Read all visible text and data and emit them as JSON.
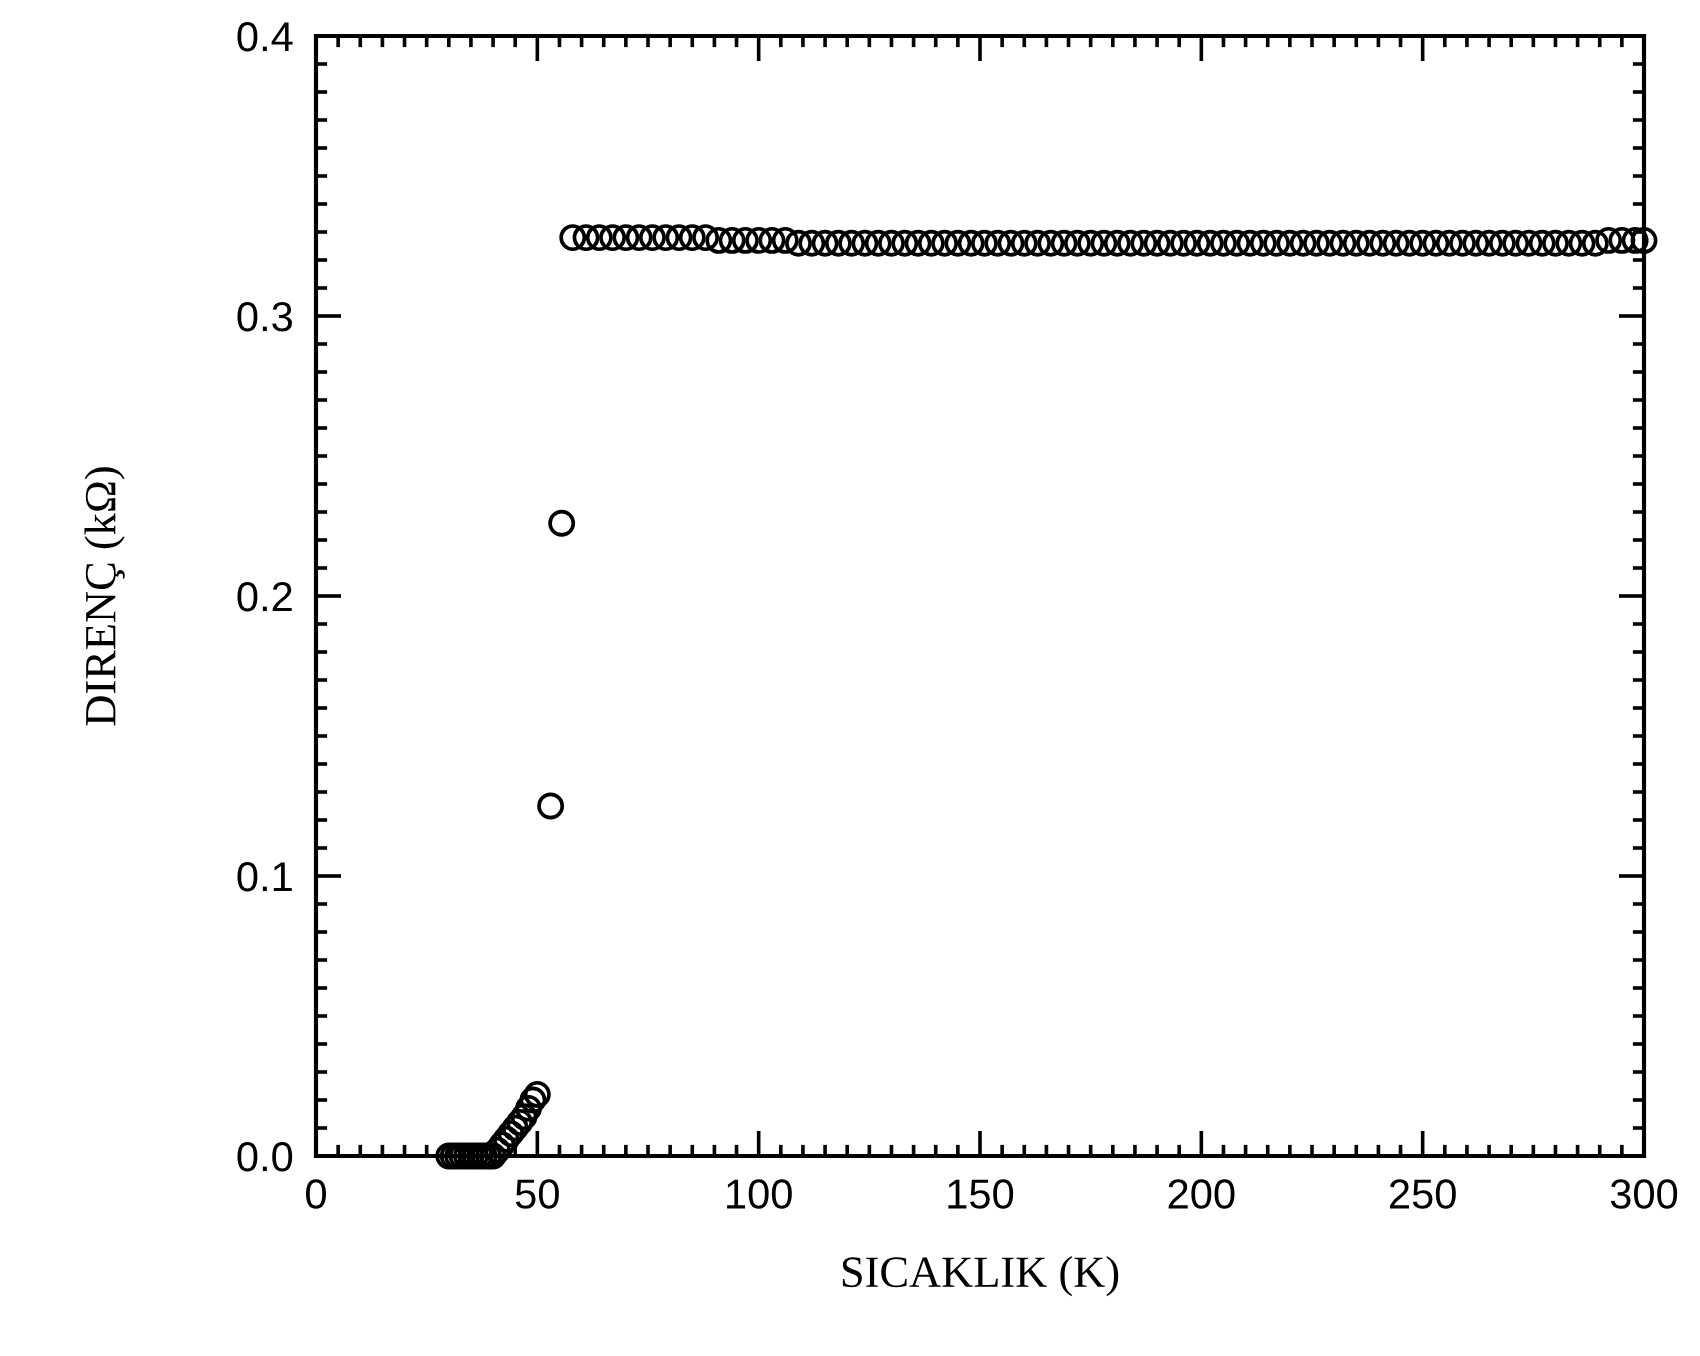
{
  "chart_data": {
    "type": "scatter",
    "xlabel": "SICAKLIK (K)",
    "ylabel": "DIRENÇ (kΩ)",
    "xlim": [
      0,
      300
    ],
    "xticks": [
      0,
      50,
      100,
      150,
      200,
      250,
      300
    ],
    "ylim": [
      0,
      0.4
    ],
    "yticks": [
      {
        "value": 0,
        "label": "0.0"
      },
      0.1,
      0.2,
      0.3,
      0.4
    ],
    "marker": "circle",
    "grid": false,
    "series": [
      {
        "color": "#000000",
        "x": [
          30,
          31,
          32,
          33,
          34,
          35,
          36,
          37,
          38,
          39,
          40,
          41,
          42,
          43,
          44,
          45,
          46,
          47,
          48,
          49,
          50,
          53,
          55.5,
          58,
          61,
          64,
          67,
          70,
          73,
          76,
          79,
          82,
          85,
          88,
          91,
          94,
          97,
          100,
          103,
          106,
          109,
          112,
          115,
          118,
          121,
          124,
          127,
          130,
          133,
          136,
          139,
          142,
          145,
          148,
          151,
          154,
          157,
          160,
          163,
          166,
          169,
          172,
          175,
          178,
          181,
          184,
          187,
          190,
          193,
          196,
          199,
          202,
          205,
          208,
          211,
          214,
          217,
          220,
          223,
          226,
          229,
          232,
          235,
          238,
          241,
          244,
          247,
          250,
          253,
          256,
          259,
          262,
          265,
          268,
          271,
          274,
          277,
          280,
          283,
          286,
          289,
          292,
          295,
          298,
          300
        ],
        "values": [
          0,
          0,
          0,
          0,
          0,
          0,
          0,
          0,
          0,
          0,
          0,
          0.002,
          0.004,
          0.006,
          0.008,
          0.01,
          0.012,
          0.014,
          0.017,
          0.02,
          0.022,
          0.125,
          0.226,
          0.328,
          0.328,
          0.328,
          0.328,
          0.328,
          0.328,
          0.328,
          0.328,
          0.328,
          0.328,
          0.328,
          0.327,
          0.327,
          0.327,
          0.327,
          0.327,
          0.327,
          0.326,
          0.326,
          0.326,
          0.326,
          0.326,
          0.326,
          0.326,
          0.326,
          0.326,
          0.326,
          0.326,
          0.326,
          0.326,
          0.326,
          0.326,
          0.326,
          0.326,
          0.326,
          0.326,
          0.326,
          0.326,
          0.326,
          0.326,
          0.326,
          0.326,
          0.326,
          0.326,
          0.326,
          0.326,
          0.326,
          0.326,
          0.326,
          0.326,
          0.326,
          0.326,
          0.326,
          0.326,
          0.326,
          0.326,
          0.326,
          0.326,
          0.326,
          0.326,
          0.326,
          0.326,
          0.326,
          0.326,
          0.326,
          0.326,
          0.326,
          0.326,
          0.326,
          0.326,
          0.326,
          0.326,
          0.326,
          0.326,
          0.326,
          0.326,
          0.326,
          0.326,
          0.327,
          0.327,
          0.327,
          0.327
        ]
      }
    ]
  }
}
